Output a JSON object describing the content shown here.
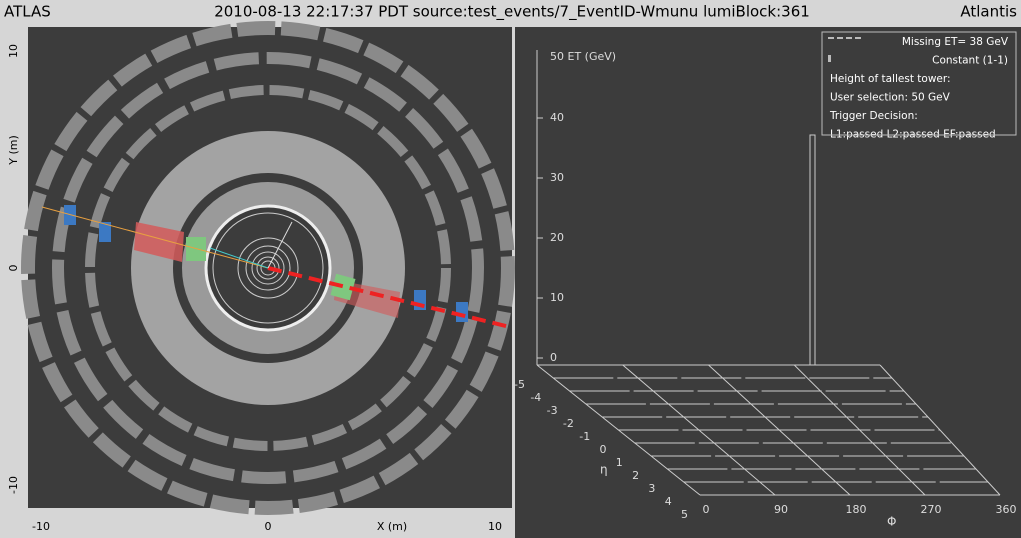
{
  "header": {
    "left": "ATLAS",
    "center": "2010-08-13 22:17:37 PDT source:test_events/7_EventID-Wmunu lumiBlock:361",
    "right": "Atlantis"
  },
  "xy_view": {
    "y_axis_label": "Y (m)",
    "x_axis_label": "X (m)",
    "y_ticks": [
      10,
      0,
      -10
    ],
    "x_ticks": [
      -10,
      0,
      10
    ]
  },
  "lego": {
    "et_axis_label": "50 ET (GeV)",
    "et_ticks": [
      40,
      30,
      20,
      10,
      0
    ],
    "eta_label": "η",
    "eta_ticks": [
      -5,
      -4,
      -3,
      -2,
      -1,
      0,
      1,
      2,
      3,
      4,
      5
    ],
    "phi_label": "Φ",
    "phi_ticks": [
      0,
      90,
      180,
      270,
      360
    ],
    "legend": [
      "Missing ET= 38 GeV",
      "Constant (1-1)",
      "Height of tallest tower:",
      "User selection: 50 GeV",
      "Trigger Decision:",
      "L1:passed L2:passed EF:passed"
    ]
  }
}
